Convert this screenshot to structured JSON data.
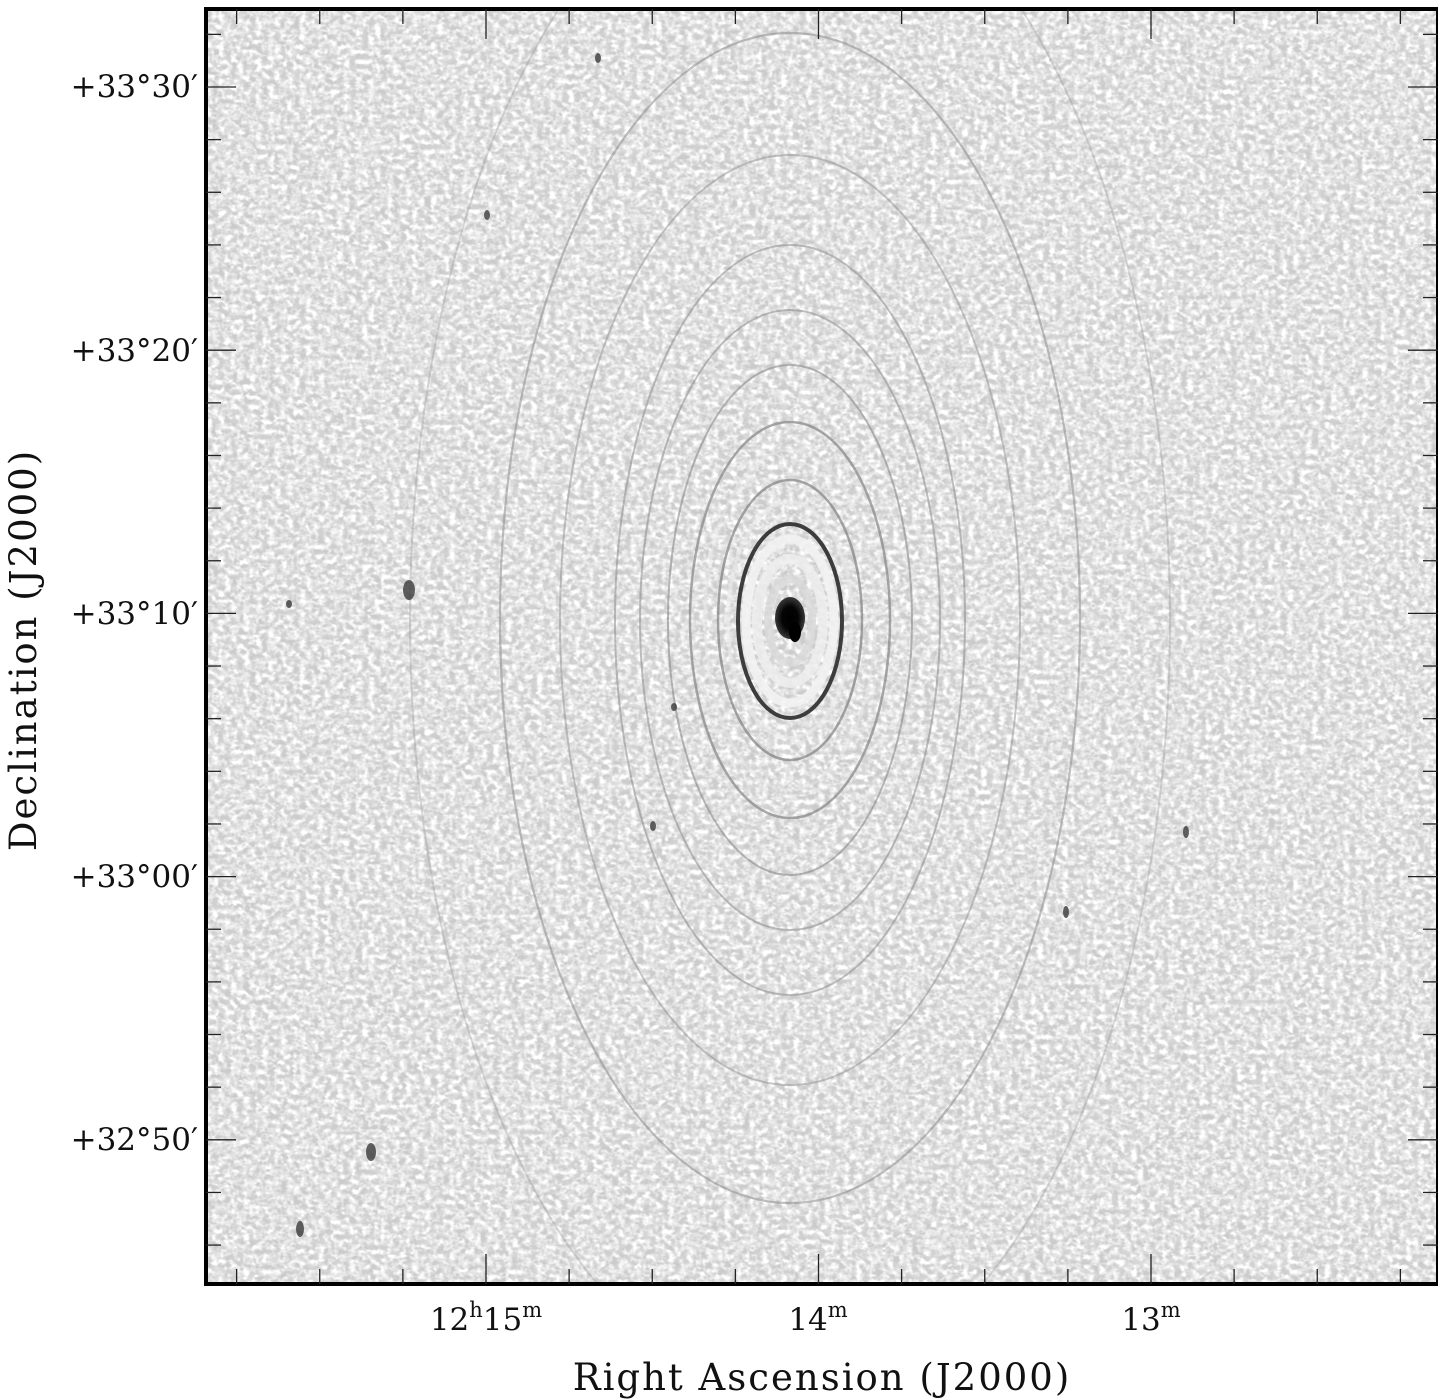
{
  "figure": {
    "x_axis": {
      "title": "Right Ascension (J2000)",
      "major_ticks": [
        {
          "hours": "12",
          "minutes": "15",
          "label_main": "12",
          "unit_h": "h",
          "label_min": "15",
          "unit_m": "m"
        },
        {
          "hours": "",
          "minutes": "14",
          "label_main": "",
          "unit_h": "",
          "label_min": "14",
          "unit_m": "m"
        },
        {
          "hours": "",
          "minutes": "13",
          "label_main": "",
          "unit_h": "",
          "label_min": "13",
          "unit_m": "m"
        }
      ]
    },
    "y_axis": {
      "title": "Declination (J2000)",
      "major_ticks": [
        "+33°30′",
        "+33°20′",
        "+33°10′",
        "+33°00′",
        "+32°50′"
      ]
    },
    "image": {
      "colormap": "greyscale",
      "description_source": "radio continuum map with bright central point source and concentric elliptical ring artifacts",
      "background_color": "#c9c9c9",
      "source_color": "#000000"
    }
  }
}
